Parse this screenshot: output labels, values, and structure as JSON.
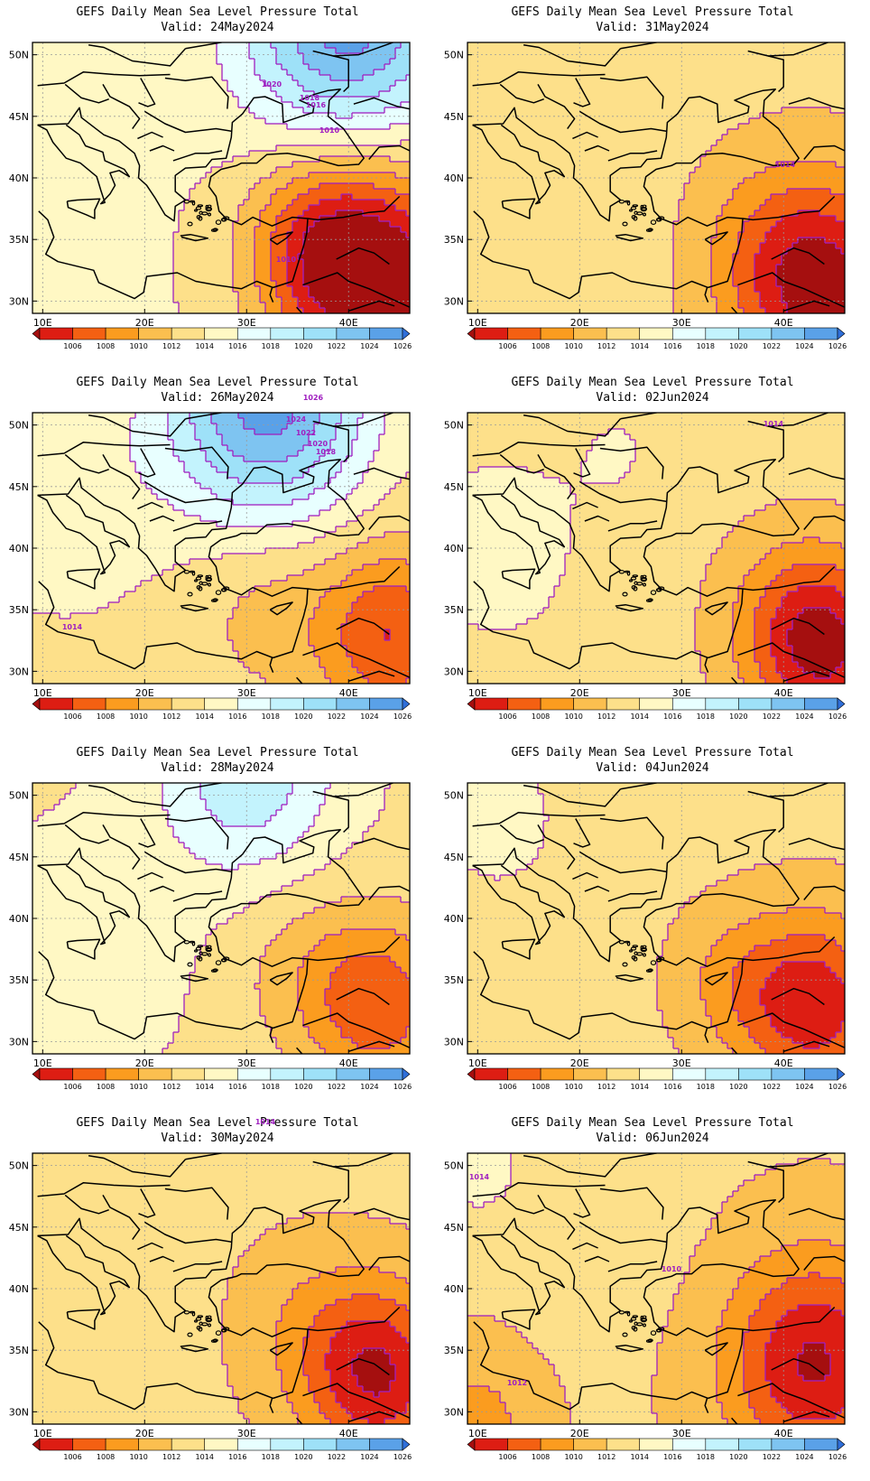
{
  "shared": {
    "lat_labels": [
      "50N",
      "45N",
      "40N",
      "35N",
      "30N"
    ],
    "lon_labels": [
      "10E",
      "20E",
      "30E",
      "40E"
    ],
    "colorbar": {
      "levels": [
        "1006",
        "1008",
        "1010",
        "1012",
        "1014",
        "1016",
        "1018",
        "1020",
        "1022",
        "1024",
        "1026"
      ],
      "colors": [
        "#a50f0f",
        "#dd1d13",
        "#f46012",
        "#fb9c1f",
        "#fbbf4f",
        "#fde08a",
        "#fff8c4",
        "#e8ffff",
        "#c3f3fd",
        "#9ee1f8",
        "#7ec4f1",
        "#5aa1e8",
        "#2f6fd9"
      ]
    },
    "contour_color": "#a020c0"
  },
  "panels": [
    {
      "title": "GEFS Daily Mean Sea Level Pressure Total",
      "valid": "Valid: 24May2024",
      "label_text": [
        "1020",
        "1018",
        "1016",
        "1010",
        "1010"
      ],
      "field": {
        "base": 1016.2,
        "lo": [
          {
            "x": 44,
            "y": 31,
            "a": -11.5,
            "s": 7
          },
          {
            "x": 37,
            "y": 35,
            "a": -6,
            "s": 5
          }
        ],
        "hi": [
          {
            "x": 40,
            "y": 53,
            "a": 11,
            "s": 7
          },
          {
            "x": 13,
            "y": 40,
            "a": 1.8,
            "s": 3
          }
        ]
      }
    },
    {
      "title": "GEFS Daily Mean Sea Level Pressure Total",
      "valid": "Valid: 31May2024",
      "label_text": [
        "1014"
      ],
      "field": {
        "base": 1014.6,
        "lo": [
          {
            "x": 44,
            "y": 31,
            "a": -9.5,
            "s": 6
          },
          {
            "x": 38,
            "y": 35,
            "a": -2,
            "s": 5
          }
        ],
        "hi": [
          {
            "x": 15,
            "y": 38,
            "a": 0.6,
            "s": 9
          }
        ]
      }
    },
    {
      "title": "GEFS Daily Mean Sea Level Pressure Total",
      "valid": "Valid: 26May2024",
      "label_text": [
        "1026",
        "1024",
        "1022",
        "1020",
        "1018",
        "1014"
      ],
      "field": {
        "base": 1015,
        "lo": [
          {
            "x": 44,
            "y": 33,
            "a": -7,
            "s": 5
          },
          {
            "x": 32,
            "y": 36,
            "a": -2,
            "s": 5
          }
        ],
        "hi": [
          {
            "x": 32,
            "y": 52,
            "a": 12,
            "s": 7
          },
          {
            "x": 12,
            "y": 44,
            "a": 2.5,
            "s": 7
          }
        ]
      }
    },
    {
      "title": "GEFS Daily Mean Sea Level Pressure Total",
      "valid": "Valid: 02Jun2024",
      "label_text": [
        "1014"
      ],
      "field": {
        "base": 1014.8,
        "lo": [
          {
            "x": 44,
            "y": 32,
            "a": -9,
            "s": 5
          },
          {
            "x": 40,
            "y": 35,
            "a": -2,
            "s": 5
          }
        ],
        "hi": [
          {
            "x": 12,
            "y": 40,
            "a": 2.2,
            "s": 6
          },
          {
            "x": 24,
            "y": 48,
            "a": 1.2,
            "s": 4
          }
        ]
      }
    },
    {
      "title": "GEFS Daily Mean Sea Level Pressure Total",
      "valid": "Valid: 28May2024",
      "label_text": [],
      "field": {
        "base": 1015.6,
        "lo": [
          {
            "x": 43,
            "y": 33,
            "a": -7,
            "s": 5
          },
          {
            "x": 35,
            "y": 36,
            "a": -2,
            "s": 5
          }
        ],
        "hi": [
          {
            "x": 30,
            "y": 52,
            "a": 6,
            "s": 6
          },
          {
            "x": 15,
            "y": 38,
            "a": 1.5,
            "s": 7
          }
        ]
      }
    },
    {
      "title": "GEFS Daily Mean Sea Level Pressure Total",
      "valid": "Valid: 04Jun2024",
      "label_text": [],
      "field": {
        "base": 1014.5,
        "lo": [
          {
            "x": 43,
            "y": 33,
            "a": -8,
            "s": 5
          },
          {
            "x": 35,
            "y": 35,
            "a": -2.5,
            "s": 4
          }
        ],
        "hi": [
          {
            "x": 12,
            "y": 48,
            "a": 3,
            "s": 4
          }
        ]
      }
    },
    {
      "title": "GEFS Daily Mean Sea Level Pressure Total",
      "valid": "Valid: 30May2024",
      "label_text": [
        "1014"
      ],
      "field": {
        "base": 1014.5,
        "lo": [
          {
            "x": 43,
            "y": 33,
            "a": -8.5,
            "s": 5
          },
          {
            "x": 36,
            "y": 37,
            "a": -2,
            "s": 5
          }
        ],
        "hi": [
          {
            "x": 15,
            "y": 35,
            "a": 0.8,
            "s": 5
          }
        ]
      }
    },
    {
      "title": "GEFS Daily Mean Sea Level Pressure Total",
      "valid": "Valid: 06Jun2024",
      "label_text": [
        "1014",
        "1010",
        "1012"
      ],
      "field": {
        "base": 1014.2,
        "lo": [
          {
            "x": 43,
            "y": 34,
            "a": -8.5,
            "s": 6
          },
          {
            "x": 10,
            "y": 29,
            "a": -3,
            "s": 4
          }
        ],
        "hi": [
          {
            "x": 22,
            "y": 45,
            "a": 0.8,
            "s": 6
          },
          {
            "x": 10,
            "y": 50,
            "a": 3,
            "s": 3
          }
        ]
      }
    }
  ]
}
